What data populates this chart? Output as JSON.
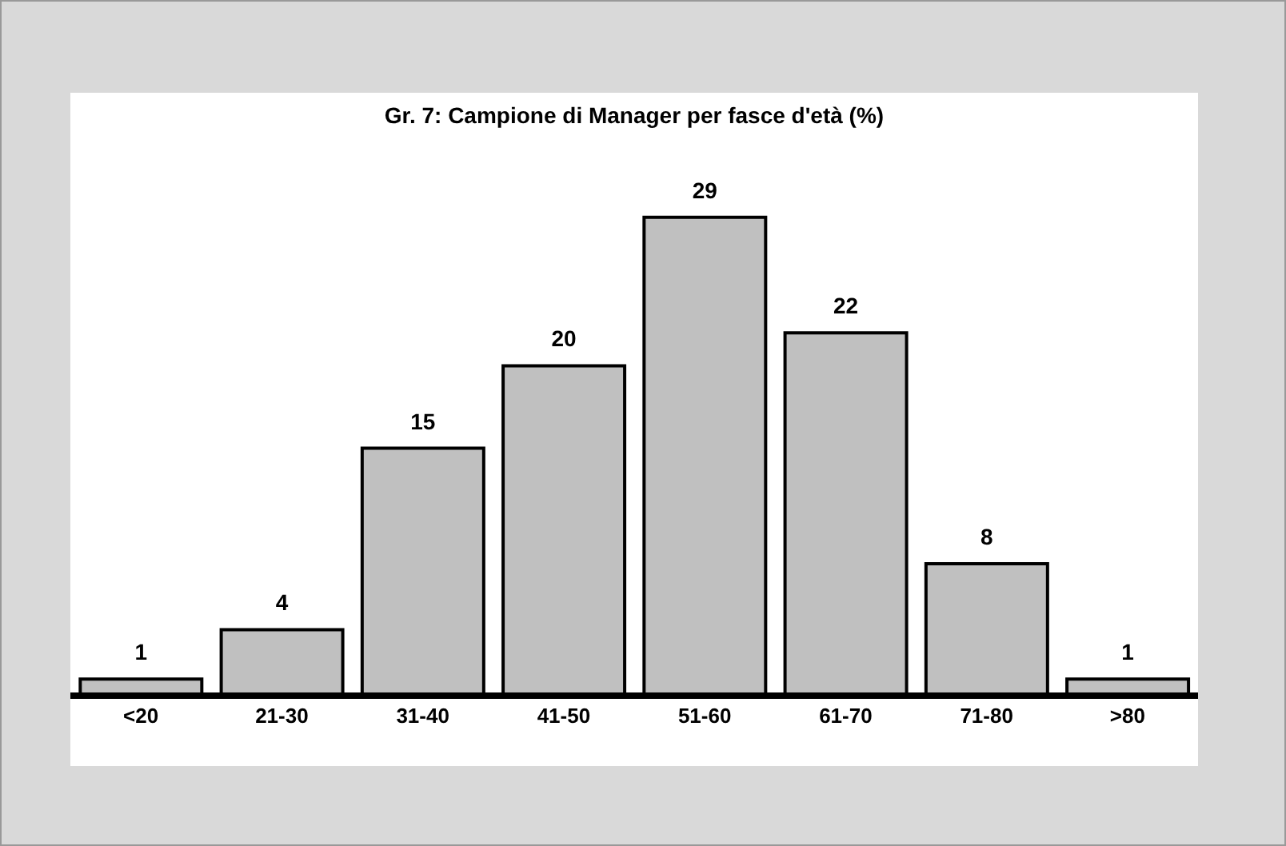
{
  "chart_data": {
    "type": "bar",
    "title": "Gr. 7: Campione di Manager per fasce d'età (%)",
    "categories": [
      "<20",
      "21-30",
      "31-40",
      "41-50",
      "51-60",
      "61-70",
      "71-80",
      ">80"
    ],
    "values": [
      1,
      4,
      15,
      20,
      29,
      22,
      8,
      1
    ],
    "color": "#c0c0c0",
    "data_labels": true,
    "grid": false,
    "legend": false
  }
}
